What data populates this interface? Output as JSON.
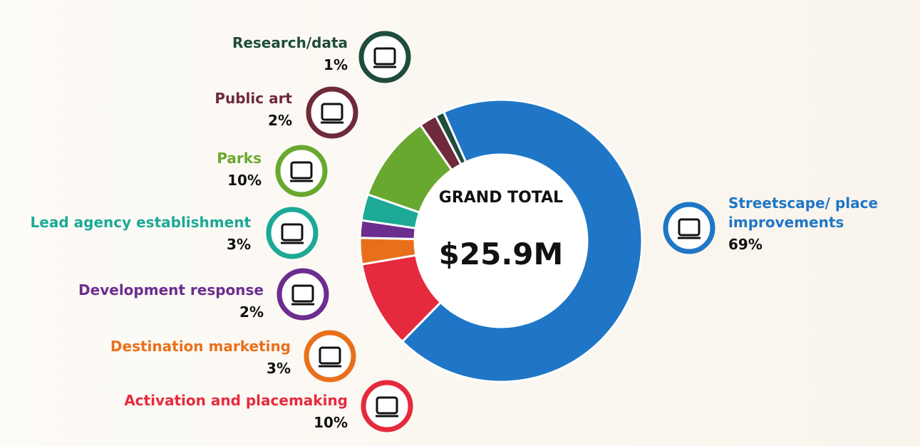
{
  "chart_data": {
    "type": "donut",
    "center_label": "GRAND TOTAL",
    "total": "$25.9M",
    "categories": [
      "Streetscape/ place improvements",
      "Activation and placemaking",
      "Destination marketing",
      "Development response",
      "Lead agency establishment",
      "Parks",
      "Public art",
      "Research/data"
    ],
    "values": [
      69,
      10,
      3,
      2,
      3,
      10,
      2,
      1
    ],
    "value_labels": [
      "69%",
      "10%",
      "3%",
      "2%",
      "3%",
      "10%",
      "2%",
      "1%"
    ],
    "colors": [
      "#1f76c6",
      "#e62a3e",
      "#e8701c",
      "#6b2d8e",
      "#1ca995",
      "#69a82f",
      "#6e2a3b",
      "#1f4c3c"
    ]
  }
}
